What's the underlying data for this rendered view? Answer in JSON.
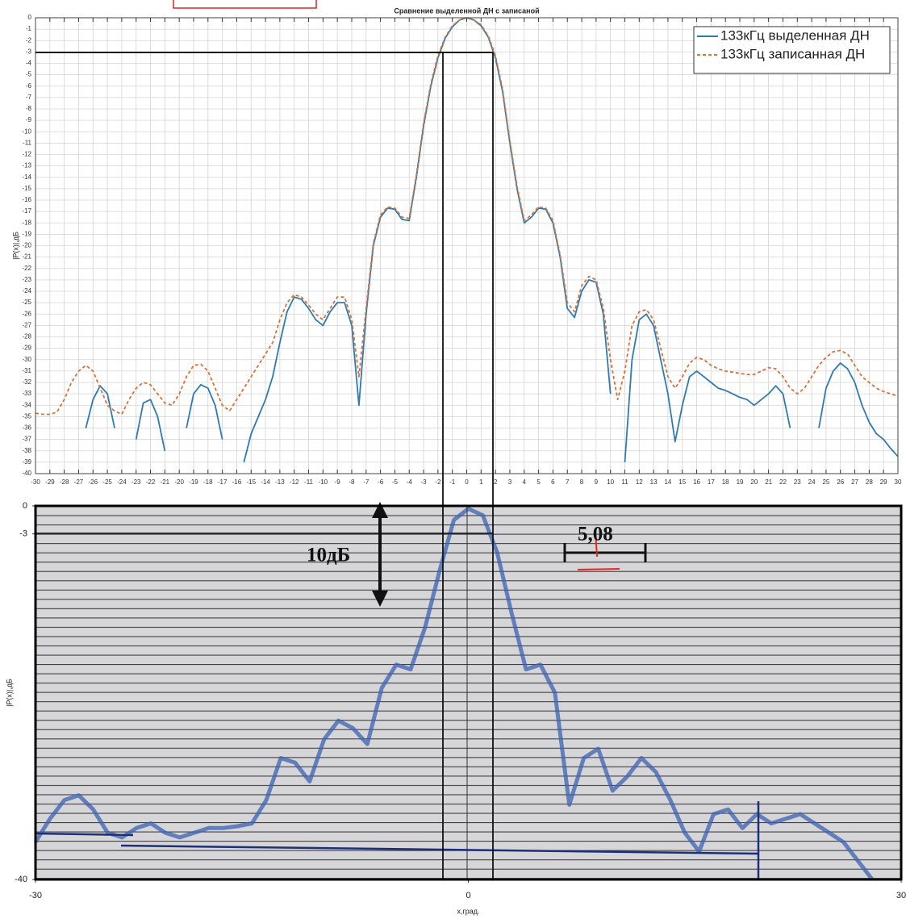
{
  "chart_data": [
    {
      "type": "line",
      "title": "Сравнение выделенной ДН с записаной",
      "y_label": "|P(x)|,дБ",
      "x": [
        -30,
        -29.5,
        -29,
        -28.5,
        -28,
        -27.5,
        -27,
        -26.5,
        -26,
        -25.5,
        -25,
        -24.5,
        -24,
        -23.5,
        -23,
        -22.5,
        -22,
        -21.5,
        -21,
        -20.5,
        -20,
        -19.5,
        -19,
        -18.5,
        -18,
        -17.5,
        -17,
        -16.5,
        -16,
        -15.5,
        -15,
        -14.5,
        -14,
        -13.5,
        -13,
        -12.5,
        -12,
        -11.5,
        -11,
        -10.5,
        -10,
        -9.5,
        -9,
        -8.5,
        -8,
        -7.5,
        -7,
        -6.5,
        -6,
        -5.5,
        -5,
        -4.5,
        -4,
        -3.5,
        -3,
        -2.5,
        -2,
        -1.5,
        -1,
        -0.5,
        0,
        0.5,
        1,
        1.5,
        2,
        2.5,
        3,
        3.5,
        4,
        4.5,
        5,
        5.5,
        6,
        6.5,
        7,
        7.5,
        8,
        8.5,
        9,
        9.5,
        10,
        10.5,
        11,
        11.5,
        12,
        12.5,
        13,
        13.5,
        14,
        14.5,
        15,
        15.5,
        16,
        16.5,
        17,
        17.5,
        18,
        18.5,
        19,
        19.5,
        20,
        20.5,
        21,
        21.5,
        22,
        22.5,
        23,
        23.5,
        24,
        24.5,
        25,
        25.5,
        26,
        26.5,
        27,
        27.5,
        28,
        28.5,
        29,
        29.5,
        30
      ],
      "series": [
        {
          "name": "133кГц выделенная ДН",
          "color": "#2e7bb4",
          "line_style": "solid",
          "values": [
            null,
            null,
            null,
            null,
            null,
            null,
            null,
            -36,
            -33.5,
            -32.3,
            -33,
            -36,
            null,
            null,
            -37,
            -33.8,
            -33.5,
            -35,
            -38,
            null,
            null,
            -36,
            -33,
            -32.2,
            -32.5,
            -34,
            -37,
            null,
            null,
            -39,
            -36.5,
            -35,
            -33.5,
            -31.5,
            -28.5,
            -25.8,
            -24.5,
            -24.7,
            -25.5,
            -26.5,
            -27,
            -25.8,
            -25,
            -25,
            -27,
            -34,
            -26,
            -20,
            -17.5,
            -16.7,
            -16.8,
            -17.7,
            -17.8,
            -14,
            -9.5,
            -6,
            -3.5,
            -1.8,
            -0.8,
            -0.2,
            0,
            -0.2,
            -0.7,
            -1.7,
            -3.5,
            -6.5,
            -11,
            -15,
            -18,
            -17.5,
            -16.7,
            -16.8,
            -18,
            -21,
            -25.5,
            -26.3,
            -24,
            -23,
            -23.2,
            -26,
            -33,
            null,
            -39,
            -30,
            -26.5,
            -26,
            -27,
            -30,
            -33,
            -37.2,
            -34,
            -31.5,
            -31,
            -31.5,
            -32,
            -32.5,
            -32.7,
            -33,
            -33.3,
            -33.5,
            -34,
            -33.5,
            -33,
            -32.3,
            -33,
            -36,
            null,
            null,
            null,
            -36,
            -32.5,
            -31,
            -30.3,
            -30.8,
            -32,
            -34,
            -35.5,
            -36.5,
            -37,
            -37.8,
            -38.5
          ]
        },
        {
          "name": "133кГц записанная ДН",
          "color": "#d9713a",
          "line_style": "dashed",
          "values": [
            -34.7,
            -34.8,
            -34.8,
            -34.6,
            -33.5,
            -32,
            -31,
            -30.5,
            -31,
            -32.5,
            -34,
            -34.5,
            -34.8,
            -33.5,
            -32.5,
            -32,
            -32.2,
            -33,
            -33.8,
            -34,
            -33,
            -31.5,
            -30.5,
            -30.4,
            -31,
            -32.5,
            -34,
            -34.5,
            -33.5,
            -32.5,
            -31.5,
            -30.5,
            -29.5,
            -28.5,
            -26.5,
            -25,
            -24.3,
            -24.5,
            -25.2,
            -26,
            -26.5,
            -25.5,
            -24.5,
            -24.5,
            -26.5,
            -31.5,
            -25.5,
            -19.8,
            -17.3,
            -16.6,
            -16.7,
            -17.5,
            -17.6,
            -13.8,
            -9.3,
            -5.8,
            -3.3,
            -1.7,
            -0.7,
            -0.2,
            0,
            -0.2,
            -0.6,
            -1.6,
            -3.3,
            -6.3,
            -10.8,
            -14.8,
            -17.8,
            -17.3,
            -16.6,
            -16.7,
            -17.8,
            -20.8,
            -25,
            -25.8,
            -23.5,
            -22.7,
            -23,
            -25.5,
            -30,
            -33.5,
            -31,
            -27,
            -25.8,
            -25.6,
            -26.5,
            -29,
            -31.5,
            -32.5,
            -31.5,
            -30.3,
            -29.8,
            -30,
            -30.5,
            -30.8,
            -31,
            -31.1,
            -31.2,
            -31.3,
            -31.3,
            -31,
            -30.7,
            -30.8,
            -31.5,
            -32.5,
            -33,
            -32.5,
            -31.5,
            -30.5,
            -29.8,
            -29.3,
            -29.2,
            -29.5,
            -30.5,
            -31.5,
            -32,
            -32.5,
            -32.8,
            -33,
            -33.2
          ]
        }
      ],
      "xlim": [
        -30,
        30
      ],
      "ylim": [
        -40,
        0
      ],
      "xticks": [
        -30,
        -29,
        -28,
        -27,
        -26,
        -25,
        -24,
        -23,
        -22,
        -21,
        -20,
        -19,
        -18,
        -17,
        -16,
        -15,
        -14,
        -13,
        -12,
        -11,
        -10,
        -9,
        -8,
        -7,
        -6,
        -5,
        -4,
        -3,
        -2,
        -1,
        0,
        1,
        2,
        3,
        4,
        5,
        6,
        7,
        8,
        9,
        10,
        11,
        12,
        13,
        14,
        15,
        16,
        17,
        18,
        19,
        20,
        21,
        22,
        23,
        24,
        25,
        26,
        27,
        28,
        29,
        30
      ],
      "yticks": [
        0,
        -1,
        -2,
        -3,
        -4,
        -5,
        -6,
        -7,
        -8,
        -9,
        -10,
        -11,
        -12,
        -13,
        -14,
        -15,
        -16,
        -17,
        -18,
        -19,
        -20,
        -21,
        -22,
        -23,
        -24,
        -25,
        -26,
        -27,
        -28,
        -29,
        -30,
        -31,
        -32,
        -33,
        -34,
        -35,
        -36,
        -37,
        -38,
        -39,
        -40
      ],
      "grid": true,
      "legend": "upper right"
    },
    {
      "type": "line",
      "y_label": "|P(x)|,дБ",
      "x_label": "x,град.",
      "x": [
        -30,
        -29,
        -28,
        -27,
        -26,
        -25,
        -24,
        -23,
        -22,
        -21,
        -20,
        -19,
        -18,
        -17,
        -16,
        -15,
        -14,
        -13,
        -12,
        -11,
        -10,
        -9,
        -8,
        -7,
        -6,
        -5,
        -4,
        -3,
        -2,
        -1,
        0,
        1,
        2,
        3,
        4,
        5,
        6,
        7,
        8,
        9,
        10,
        11,
        12,
        13,
        14,
        15,
        16,
        17,
        18,
        19,
        20,
        21,
        22,
        23,
        24,
        25,
        26,
        27,
        28,
        29,
        30
      ],
      "values": [
        -36,
        -33.5,
        -31.5,
        -31,
        -32.5,
        -35,
        -35.5,
        -34.5,
        -34,
        -35,
        -35.5,
        -35,
        -34.5,
        -34.5,
        -34.3,
        -34,
        -31.5,
        -27,
        -27.5,
        -29.5,
        -25,
        -23,
        -23.8,
        -25.5,
        -19.5,
        -17,
        -17.5,
        -13,
        -7,
        -1.5,
        -0.3,
        -1,
        -5,
        -11.5,
        -17.5,
        -17,
        -20,
        -32,
        -27,
        -26,
        -30.5,
        -29,
        -27,
        -28.5,
        -31.5,
        -35,
        -37,
        -33,
        -32.5,
        -34.5,
        -33,
        -34,
        -33.5,
        -33,
        -34,
        -35,
        -36,
        -38,
        -40,
        null,
        null
      ],
      "color": "#3b62b3",
      "xlim": [
        -30,
        30
      ],
      "ylim": [
        -40,
        0
      ],
      "xticks": [
        -30,
        0,
        30
      ],
      "yticks": [
        0,
        -3,
        -40
      ],
      "grid": false,
      "annotations": [
        "10дБ",
        "5,08"
      ]
    }
  ]
}
